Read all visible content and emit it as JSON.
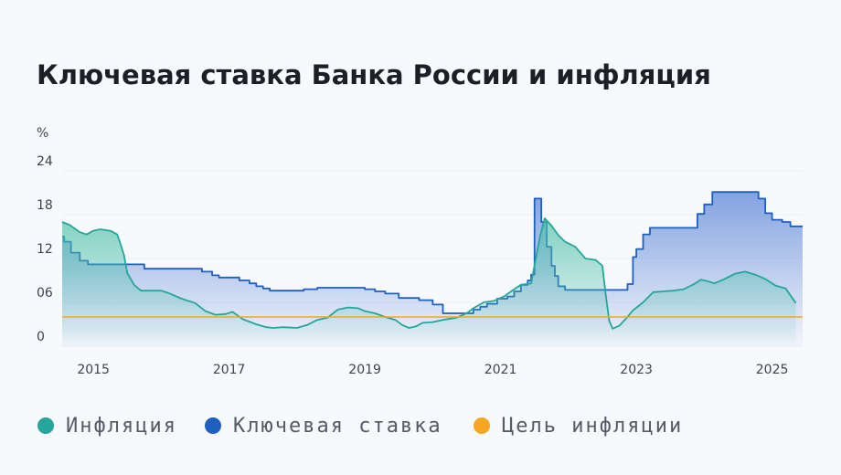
{
  "chart_data": {
    "type": "line",
    "title": "Ключевая ставка Банка России и инфляция",
    "ylabel": "%",
    "xlim": [
      2014.54,
      2025.45
    ],
    "xticks": [
      2015,
      2017,
      2019,
      2021,
      2023,
      2025
    ],
    "ylim": [
      0,
      24
    ],
    "yticks": [
      0,
      {
        "value": 6,
        "label": "06"
      },
      12,
      18,
      24
    ],
    "grid": true,
    "series": [
      {
        "name": "Ключевая ставка",
        "color": "#1e5fbf",
        "step": true,
        "x": [
          2014.54,
          2014.57,
          2014.67,
          2014.8,
          2014.92,
          2015.75,
          2016.6,
          2016.75,
          2016.85,
          2017.15,
          2017.3,
          2017.4,
          2017.5,
          2017.6,
          2018.1,
          2018.3,
          2019.0,
          2019.15,
          2019.3,
          2019.5,
          2019.8,
          2020.0,
          2020.15,
          2020.6,
          2020.7,
          2020.8,
          2020.95,
          2021.1,
          2021.2,
          2021.3,
          2021.4,
          2021.45,
          2021.5,
          2021.6,
          2021.68,
          2021.75,
          2021.8,
          2021.85,
          2021.95,
          2022.87,
          2022.95,
          2023.0,
          2023.1,
          2023.2,
          2023.9,
          2024.0,
          2024.12,
          2024.8,
          2024.9,
          2025.0,
          2025.15,
          2025.27
        ],
        "values": [
          15,
          14.3,
          12.8,
          11.7,
          11.2,
          10.6,
          10.2,
          9.7,
          9.4,
          9.0,
          8.6,
          8.2,
          7.9,
          7.6,
          7.8,
          8.0,
          7.8,
          7.5,
          7.2,
          6.6,
          6.3,
          5.7,
          4.5,
          5.0,
          5.4,
          5.8,
          6.5,
          6.8,
          7.5,
          8.4,
          9.0,
          9.8,
          20.2,
          17.0,
          13.6,
          11.0,
          9.6,
          8.2,
          7.7,
          8.5,
          12.2,
          13.3,
          15.3,
          16.2,
          18.1,
          19.4,
          21.1,
          20.2,
          18.2,
          17.3,
          17.0,
          16.4
        ]
      },
      {
        "name": "Инфляция",
        "color": "#26a69a",
        "x": [
          2014.54,
          2014.65,
          2014.8,
          2014.9,
          2015.0,
          2015.1,
          2015.25,
          2015.35,
          2015.4,
          2015.45,
          2015.5,
          2015.6,
          2015.7,
          2015.9,
          2016.0,
          2016.1,
          2016.3,
          2016.5,
          2016.65,
          2016.8,
          2016.95,
          2017.05,
          2017.2,
          2017.4,
          2017.55,
          2017.65,
          2017.8,
          2018.0,
          2018.15,
          2018.3,
          2018.45,
          2018.6,
          2018.75,
          2018.9,
          2019.0,
          2019.15,
          2019.3,
          2019.45,
          2019.55,
          2019.65,
          2019.75,
          2019.85,
          2020.0,
          2020.15,
          2020.35,
          2020.5,
          2020.6,
          2020.75,
          2020.9,
          2021.05,
          2021.2,
          2021.3,
          2021.45,
          2021.58,
          2021.65,
          2021.75,
          2021.85,
          2021.95,
          2022.1,
          2022.25,
          2022.4,
          2022.5,
          2022.55,
          2022.6,
          2022.65,
          2022.75,
          2022.85,
          2022.95,
          2023.1,
          2023.25,
          2023.4,
          2023.55,
          2023.7,
          2023.85,
          2023.95,
          2024.05,
          2024.15,
          2024.3,
          2024.45,
          2024.6,
          2024.75,
          2024.9,
          2025.05,
          2025.2,
          2025.35
        ],
        "values": [
          17,
          16.6,
          15.6,
          15.3,
          15.8,
          16.0,
          15.8,
          15.3,
          14.0,
          12.5,
          10.0,
          8.4,
          7.6,
          7.6,
          7.6,
          7.3,
          6.5,
          5.9,
          4.8,
          4.3,
          4.4,
          4.7,
          3.7,
          3.0,
          2.6,
          2.5,
          2.6,
          2.5,
          2.9,
          3.6,
          3.9,
          5.0,
          5.3,
          5.2,
          4.8,
          4.5,
          4.0,
          3.6,
          2.9,
          2.5,
          2.7,
          3.2,
          3.3,
          3.6,
          3.9,
          4.5,
          5.2,
          6.0,
          6.2,
          6.8,
          7.8,
          8.4,
          8.6,
          15.0,
          17.5,
          16.5,
          15.2,
          14.3,
          13.6,
          12.0,
          11.8,
          11.0,
          7.0,
          3.5,
          2.4,
          2.8,
          3.8,
          4.9,
          6.0,
          7.4,
          7.5,
          7.6,
          7.8,
          8.5,
          9.1,
          8.9,
          8.6,
          9.2,
          9.9,
          10.2,
          9.8,
          9.2,
          8.3,
          7.9,
          5.9
        ]
      }
    ],
    "target": {
      "name": "Цель инфляции",
      "color": "#f5a623",
      "value": 4
    },
    "legend": [
      "Инфляция",
      "Ключевая ставка",
      "Цель инфляции"
    ]
  }
}
